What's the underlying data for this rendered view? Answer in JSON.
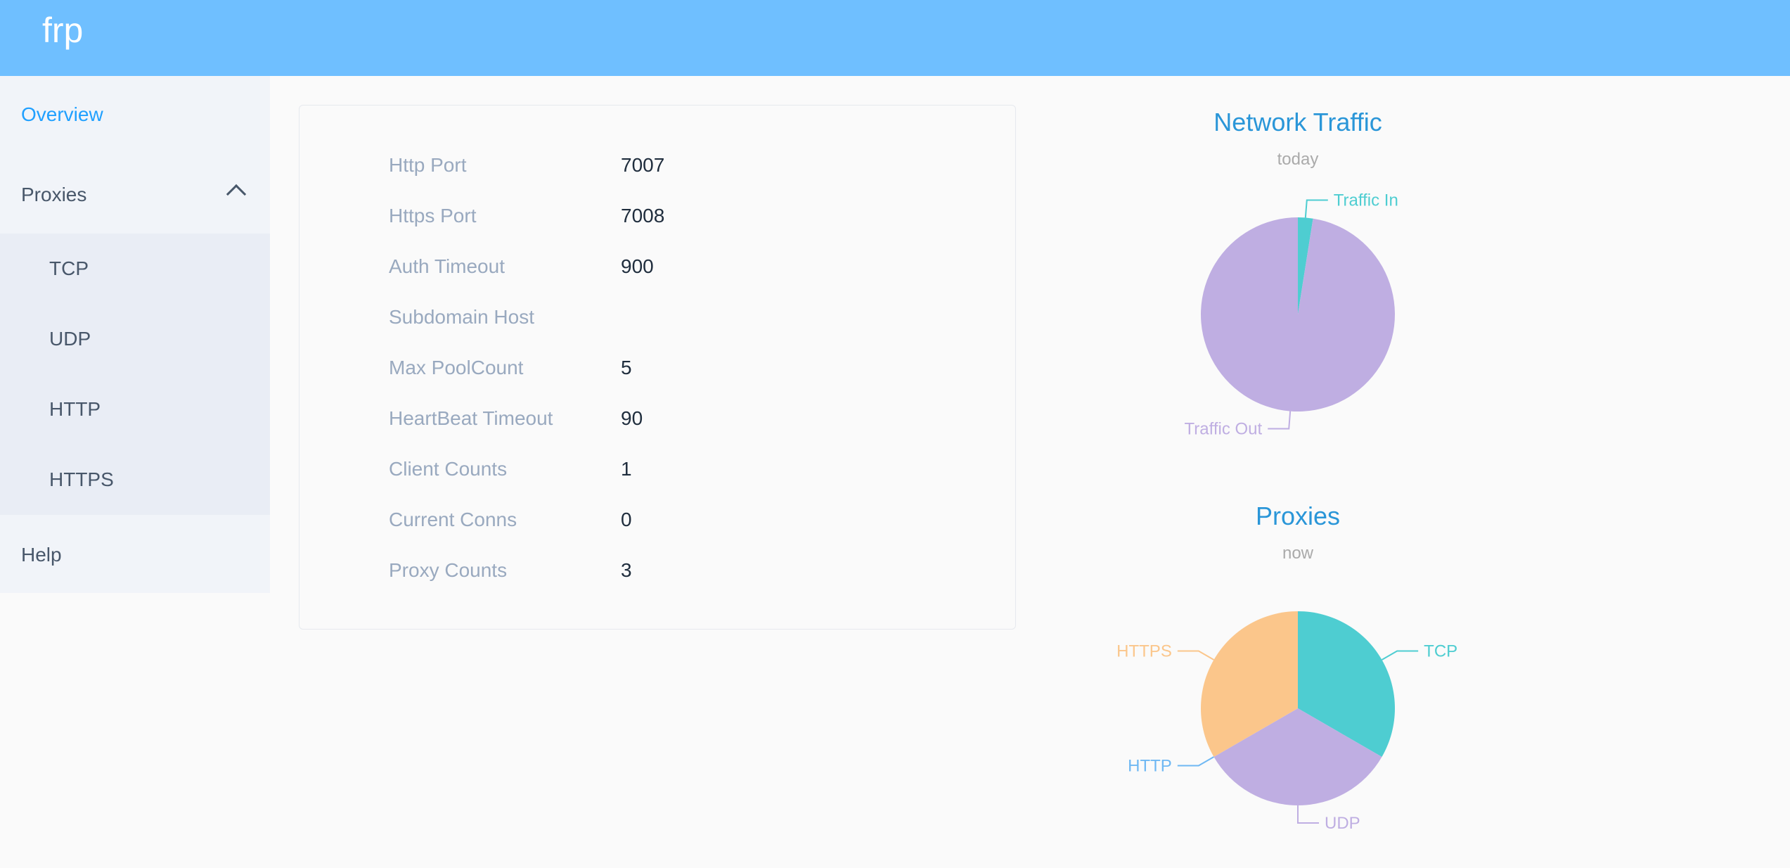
{
  "header": {
    "title": "frp"
  },
  "sidebar": {
    "overview": "Overview",
    "proxies": "Proxies",
    "sub_items": [
      "TCP",
      "UDP",
      "HTTP",
      "HTTPS"
    ],
    "help": "Help",
    "active": "Overview"
  },
  "server_info": [
    {
      "label": "Http Port",
      "value": "7007"
    },
    {
      "label": "Https Port",
      "value": "7008"
    },
    {
      "label": "Auth Timeout",
      "value": "900"
    },
    {
      "label": "Subdomain Host",
      "value": ""
    },
    {
      "label": "Max PoolCount",
      "value": "5"
    },
    {
      "label": "HeartBeat Timeout",
      "value": "90"
    },
    {
      "label": "Client Counts",
      "value": "1"
    },
    {
      "label": "Current Conns",
      "value": "0"
    },
    {
      "label": "Proxy Counts",
      "value": "3"
    }
  ],
  "colors": {
    "header": "#6fbfff",
    "accent": "#20a0ff",
    "title": "#2a96d8"
  },
  "chart_data": [
    {
      "type": "pie",
      "title": "Network Traffic",
      "subtitle": "today",
      "unit": "percent",
      "slices": [
        {
          "name": "Traffic In",
          "value": 2.5,
          "color": "#4ecdd1"
        },
        {
          "name": "Traffic Out",
          "value": 97.5,
          "color": "#bfaee2"
        }
      ]
    },
    {
      "type": "pie",
      "title": "Proxies",
      "subtitle": "now",
      "slices": [
        {
          "name": "TCP",
          "value": 1,
          "color": "#4ecdd1"
        },
        {
          "name": "UDP",
          "value": 1,
          "color": "#bfaee2"
        },
        {
          "name": "HTTP",
          "value": 0,
          "color": "#6fb8f3"
        },
        {
          "name": "HTTPS",
          "value": 1,
          "color": "#fbc68b"
        }
      ]
    }
  ]
}
